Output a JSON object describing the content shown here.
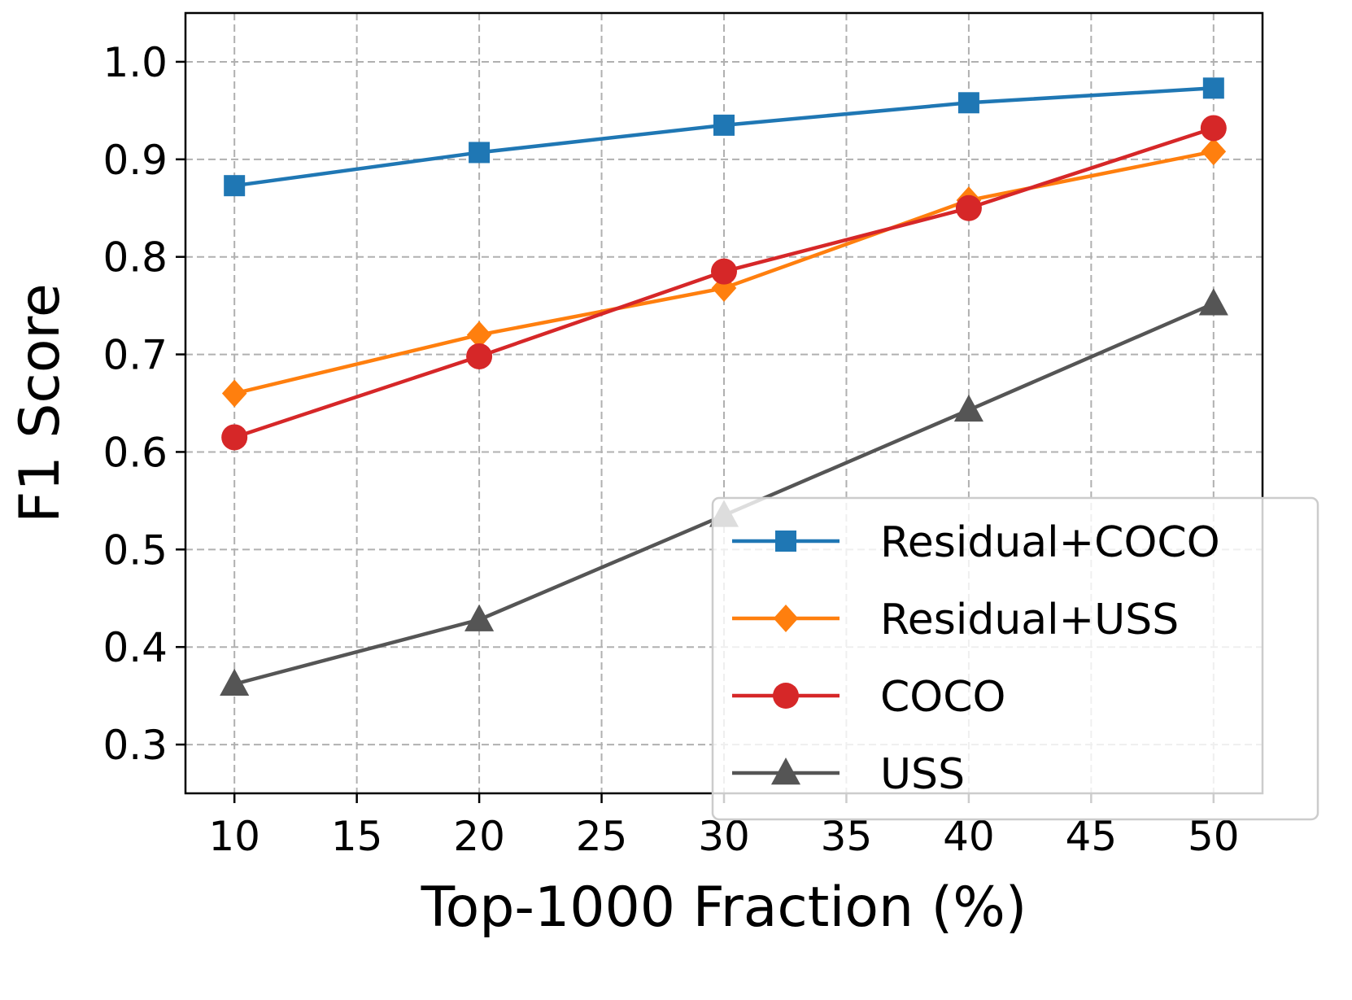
{
  "chart_data": {
    "type": "line",
    "title": "",
    "xlabel": "Top-1000 Fraction (%)",
    "ylabel": "F1 Score",
    "xlim": [
      8,
      52
    ],
    "ylim": [
      0.25,
      1.05
    ],
    "xticks": [
      10,
      15,
      20,
      25,
      30,
      35,
      40,
      45,
      50
    ],
    "xtick_labels": [
      "10",
      "15",
      "20",
      "25",
      "30",
      "35",
      "40",
      "45",
      "50"
    ],
    "yticks": [
      0.3,
      0.4,
      0.5,
      0.6,
      0.7,
      0.8,
      0.9,
      1.0
    ],
    "ytick_labels": [
      "0.3",
      "0.4",
      "0.5",
      "0.6",
      "0.7",
      "0.8",
      "0.9",
      "1.0"
    ],
    "grid": true,
    "legend_position": "lower-right",
    "x": [
      10,
      20,
      30,
      40,
      50
    ],
    "series": [
      {
        "name": "Residual+COCO",
        "color": "#1f77b4",
        "marker": "square",
        "values": [
          0.873,
          0.907,
          0.935,
          0.958,
          0.973
        ]
      },
      {
        "name": "Residual+USS",
        "color": "#ff7f0e",
        "marker": "diamond",
        "values": [
          0.66,
          0.72,
          0.768,
          0.858,
          0.908
        ]
      },
      {
        "name": "COCO",
        "color": "#d62728",
        "marker": "circle",
        "values": [
          0.615,
          0.698,
          0.785,
          0.85,
          0.932
        ]
      },
      {
        "name": "USS",
        "color": "#555555",
        "marker": "triangle",
        "values": [
          0.362,
          0.428,
          0.535,
          0.643,
          0.752
        ]
      }
    ]
  }
}
